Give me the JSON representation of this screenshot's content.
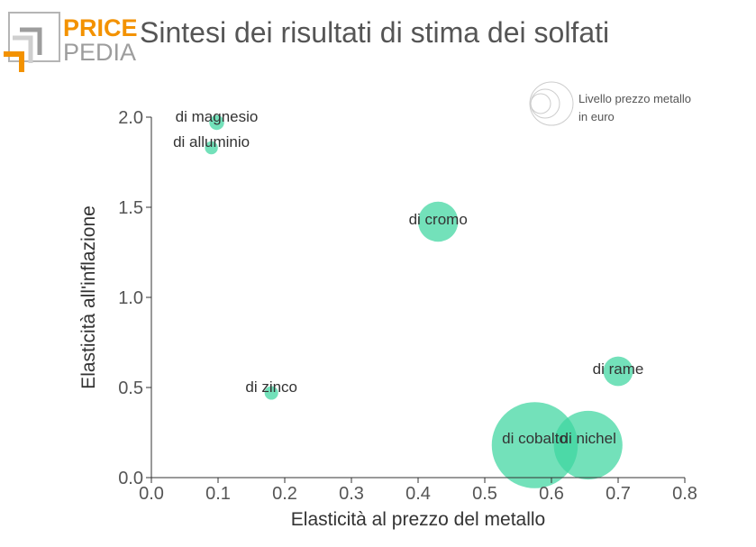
{
  "header": {
    "logo_line1": "PRICE",
    "logo_line2": "PEDIA",
    "title": "Sintesi dei risultati di stima dei solfati"
  },
  "colors": {
    "bubble": "#3dd6a0",
    "logo_orange": "#f39200",
    "logo_gray": "#9d9d9d",
    "text": "#333333",
    "title": "#555555"
  },
  "chart_data": {
    "type": "scatter",
    "title": "Sintesi dei risultati di stima dei solfati",
    "xlabel": "Elasticità al prezzo del metallo",
    "ylabel": "Elasticità all'inflazione",
    "xlim": [
      0.0,
      0.8
    ],
    "ylim": [
      0.0,
      2.0
    ],
    "x_ticks": [
      "0.0",
      "0.1",
      "0.2",
      "0.3",
      "0.4",
      "0.5",
      "0.6",
      "0.7",
      "0.8"
    ],
    "y_ticks": [
      "0.0",
      "0.5",
      "1.0",
      "1.5",
      "2.0"
    ],
    "grid": false,
    "size_legend": {
      "label_line1": "Livello prezzo metallo",
      "label_line2": "in euro",
      "position": "top-right"
    },
    "points": [
      {
        "label": "di magnesio",
        "x": 0.098,
        "y": 1.97,
        "size": 1.3
      },
      {
        "label": "di alluminio",
        "x": 0.09,
        "y": 1.83,
        "size": 1.0
      },
      {
        "label": "di cromo",
        "x": 0.43,
        "y": 1.42,
        "size": 9.5
      },
      {
        "label": "di rame",
        "x": 0.7,
        "y": 0.59,
        "size": 5.2
      },
      {
        "label": "di zinco",
        "x": 0.18,
        "y": 0.47,
        "size": 1.1
      },
      {
        "label": "di cobalto",
        "x": 0.575,
        "y": 0.18,
        "size": 44
      },
      {
        "label": "di nichel",
        "x": 0.655,
        "y": 0.18,
        "size": 28
      }
    ]
  }
}
